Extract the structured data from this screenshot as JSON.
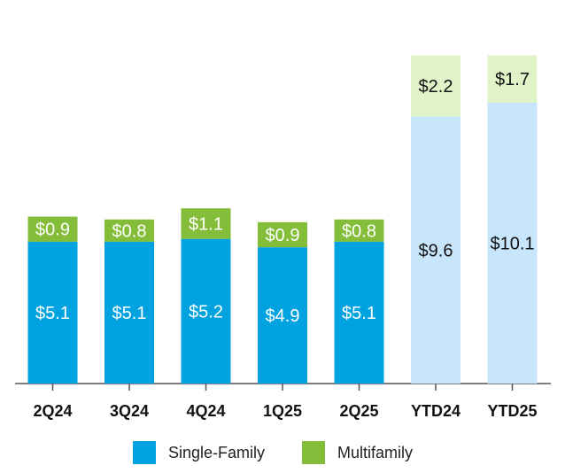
{
  "chart_data": {
    "type": "bar",
    "stacked": true,
    "categories": [
      "2Q24",
      "3Q24",
      "4Q24",
      "1Q25",
      "2Q25",
      "YTD24",
      "YTD25"
    ],
    "series": [
      {
        "name": "Single-Family",
        "values": [
          5.1,
          5.1,
          5.2,
          4.9,
          5.1,
          9.6,
          10.1
        ],
        "labels": [
          "$5.1",
          "$5.1",
          "$5.2",
          "$4.9",
          "$5.1",
          "$9.6",
          "$10.1"
        ],
        "color": "#00a3e0",
        "ytd_color": "#c7e6fb"
      },
      {
        "name": "Multifamily",
        "values": [
          0.9,
          0.8,
          1.1,
          0.9,
          0.8,
          2.2,
          1.7
        ],
        "labels": [
          "$0.9",
          "$0.8",
          "$1.1",
          "$0.9",
          "$0.8",
          "$2.2",
          "$1.7"
        ],
        "color": "#84bd3a",
        "ytd_color": "#e0f3c8"
      }
    ],
    "ytd_categories": [
      "YTD24",
      "YTD25"
    ],
    "title": "",
    "xlabel": "",
    "ylabel": "",
    "legend_position": "bottom",
    "grid": false
  },
  "legend": {
    "single_family": "Single-Family",
    "multifamily": "Multifamily"
  },
  "colors": {
    "single_family": "#00a3e0",
    "multifamily": "#84bd3a",
    "axis": "#555555"
  }
}
